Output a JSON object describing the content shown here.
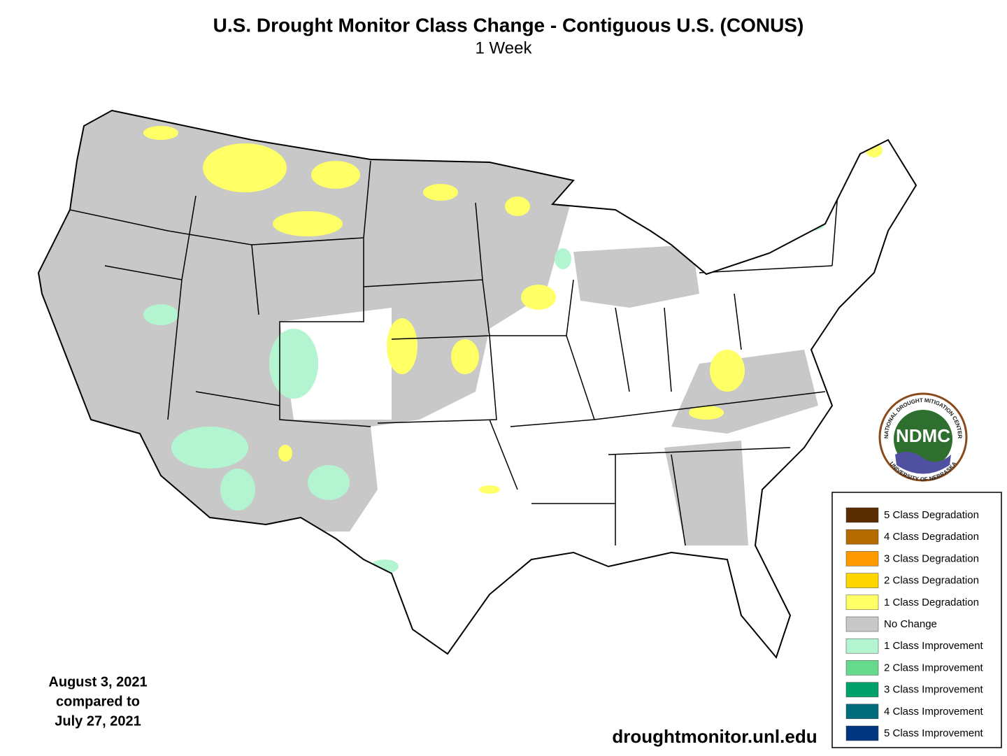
{
  "header": {
    "title": "U.S. Drought Monitor Class Change - Contiguous U.S. (CONUS)",
    "subtitle": "1 Week"
  },
  "legend": {
    "items": [
      {
        "label": "5 Class Degradation",
        "color": "#5a2d00"
      },
      {
        "label": "4 Class Degradation",
        "color": "#b36b00"
      },
      {
        "label": "3 Class Degradation",
        "color": "#ff9900"
      },
      {
        "label": "2 Class Degradation",
        "color": "#ffd700"
      },
      {
        "label": "1 Class Degradation",
        "color": "#ffff66"
      },
      {
        "label": "No Change",
        "color": "#c8c8c8"
      },
      {
        "label": "1 Class Improvement",
        "color": "#b3f5d0"
      },
      {
        "label": "2 Class Improvement",
        "color": "#66d98c"
      },
      {
        "label": "3 Class Improvement",
        "color": "#00a06a"
      },
      {
        "label": "4 Class Improvement",
        "color": "#006b7a"
      },
      {
        "label": "5 Class Improvement",
        "color": "#003580"
      }
    ]
  },
  "date_note": {
    "lines": [
      "August 3, 2021",
      "compared to",
      "July 27, 2021"
    ]
  },
  "logo": {
    "abbr": "NDMC",
    "top_text": "NATIONAL DROUGHT MITIGATION CENTER",
    "bottom_text": "UNIVERSITY OF NEBRASKA"
  },
  "source": "droughtmonitor.unl.edu"
}
